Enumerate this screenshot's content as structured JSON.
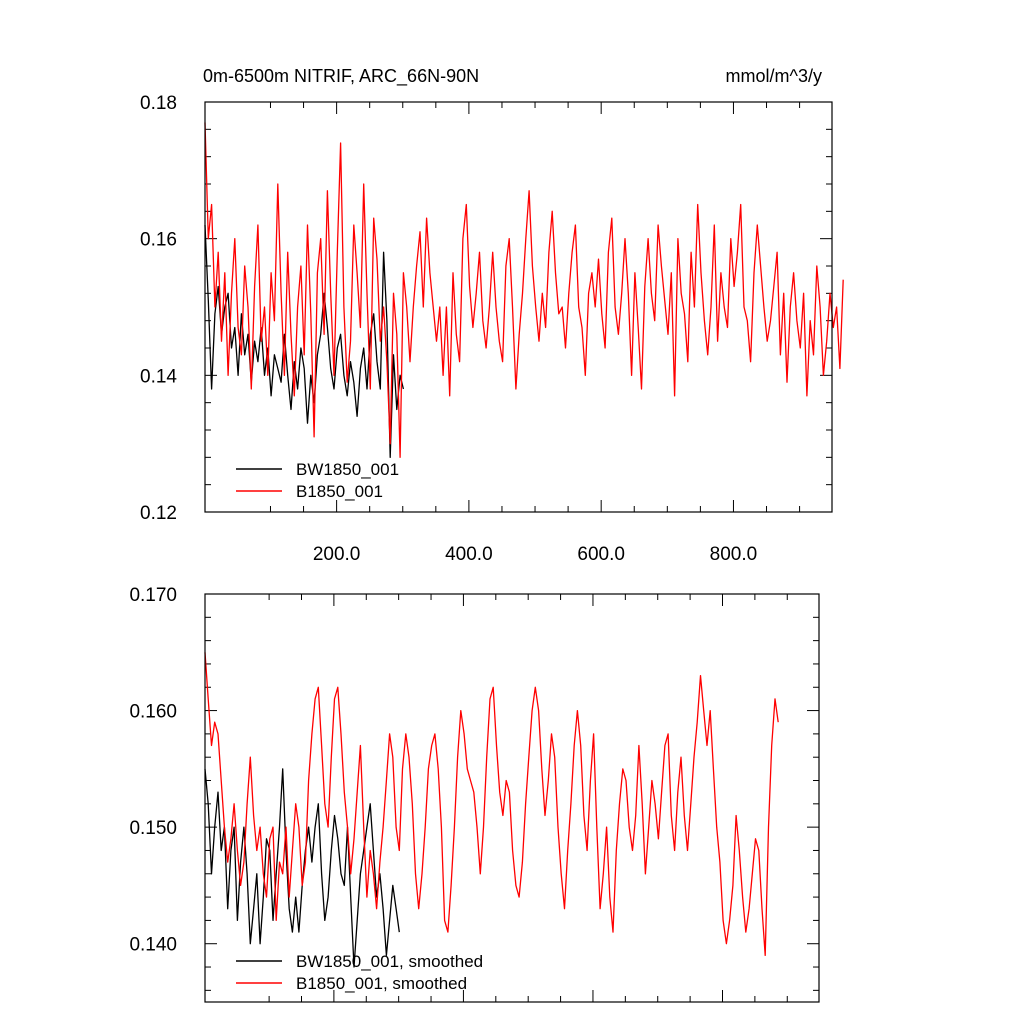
{
  "chart_data": [
    {
      "type": "line",
      "title_left": "0m-6500m NITRIF, ARC_66N-90N",
      "title_right": "mmol/m^3/y",
      "xlim": [
        1,
        949
      ],
      "ylim": [
        0.12,
        0.18
      ],
      "x_ticks": [
        200,
        400,
        600,
        800
      ],
      "x_tick_labels": [
        "200.0",
        "400.0",
        "600.0",
        "800.0"
      ],
      "y_ticks": [
        0.12,
        0.14,
        0.16,
        0.18
      ],
      "y_tick_labels": [
        "0.12",
        "0.14",
        "0.16",
        "0.18"
      ],
      "legend_position": "bottom-left",
      "series": [
        {
          "name": "BW1850_001",
          "color": "#000000",
          "x_step": 5,
          "x_start": 1,
          "values": [
            0.162,
            0.151,
            0.138,
            0.149,
            0.153,
            0.146,
            0.15,
            0.152,
            0.144,
            0.147,
            0.14,
            0.149,
            0.143,
            0.146,
            0.139,
            0.145,
            0.142,
            0.147,
            0.14,
            0.144,
            0.137,
            0.143,
            0.141,
            0.139,
            0.146,
            0.14,
            0.135,
            0.142,
            0.138,
            0.144,
            0.141,
            0.133,
            0.14,
            0.136,
            0.143,
            0.146,
            0.152,
            0.147,
            0.141,
            0.138,
            0.144,
            0.146,
            0.14,
            0.137,
            0.142,
            0.139,
            0.134,
            0.141,
            0.144,
            0.138,
            0.146,
            0.149,
            0.142,
            0.138,
            0.158,
            0.148,
            0.128,
            0.143,
            0.135,
            0.14,
            0.138
          ]
        },
        {
          "name": "B1850_001",
          "color": "#ff0000",
          "x_step": 5,
          "x_start": 1,
          "values": [
            0.177,
            0.16,
            0.165,
            0.15,
            0.158,
            0.145,
            0.155,
            0.14,
            0.152,
            0.16,
            0.147,
            0.143,
            0.156,
            0.15,
            0.138,
            0.153,
            0.162,
            0.145,
            0.15,
            0.14,
            0.155,
            0.148,
            0.168,
            0.152,
            0.14,
            0.158,
            0.146,
            0.137,
            0.15,
            0.156,
            0.143,
            0.162,
            0.149,
            0.131,
            0.155,
            0.16,
            0.146,
            0.167,
            0.152,
            0.14,
            0.158,
            0.174,
            0.15,
            0.139,
            0.145,
            0.162,
            0.155,
            0.147,
            0.168,
            0.152,
            0.138,
            0.163,
            0.157,
            0.145,
            0.15,
            0.142,
            0.13,
            0.152,
            0.146,
            0.128,
            0.155,
            0.15,
            0.142,
            0.15,
            0.156,
            0.161,
            0.15,
            0.163,
            0.155,
            0.15,
            0.145,
            0.15,
            0.14,
            0.15,
            0.137,
            0.155,
            0.146,
            0.142,
            0.16,
            0.165,
            0.153,
            0.147,
            0.152,
            0.158,
            0.148,
            0.144,
            0.15,
            0.158,
            0.15,
            0.145,
            0.142,
            0.156,
            0.16,
            0.15,
            0.138,
            0.146,
            0.152,
            0.16,
            0.167,
            0.156,
            0.15,
            0.145,
            0.152,
            0.147,
            0.158,
            0.164,
            0.155,
            0.149,
            0.15,
            0.144,
            0.152,
            0.158,
            0.162,
            0.15,
            0.147,
            0.14,
            0.152,
            0.155,
            0.15,
            0.157,
            0.149,
            0.144,
            0.158,
            0.163,
            0.15,
            0.146,
            0.152,
            0.16,
            0.152,
            0.14,
            0.155,
            0.147,
            0.138,
            0.153,
            0.16,
            0.152,
            0.148,
            0.162,
            0.156,
            0.151,
            0.146,
            0.155,
            0.137,
            0.16,
            0.152,
            0.149,
            0.142,
            0.158,
            0.15,
            0.165,
            0.155,
            0.148,
            0.143,
            0.15,
            0.162,
            0.145,
            0.155,
            0.15,
            0.147,
            0.16,
            0.153,
            0.158,
            0.165,
            0.15,
            0.148,
            0.142,
            0.155,
            0.162,
            0.156,
            0.15,
            0.145,
            0.148,
            0.153,
            0.158,
            0.143,
            0.152,
            0.139,
            0.15,
            0.155,
            0.148,
            0.144,
            0.152,
            0.137,
            0.148,
            0.143,
            0.156,
            0.15,
            0.14,
            0.145,
            0.152,
            0.147,
            0.15,
            0.141,
            0.154
          ]
        }
      ],
      "legend": [
        {
          "label": "BW1850_001",
          "color": "#000000"
        },
        {
          "label": "B1850_001",
          "color": "#ff0000"
        }
      ]
    },
    {
      "type": "line",
      "xlim": [
        1,
        949
      ],
      "ylim": [
        0.135,
        0.17
      ],
      "x_ticks": [
        200,
        400,
        600,
        800
      ],
      "x_tick_labels": [],
      "y_ticks": [
        0.14,
        0.15,
        0.16,
        0.17
      ],
      "y_tick_labels": [
        "0.140",
        "0.150",
        "0.160",
        "0.170"
      ],
      "legend_position": "bottom-left",
      "series": [
        {
          "name": "BW1850_001, smoothed",
          "color": "#000000",
          "x_step": 5,
          "x_start": 1,
          "values": [
            0.155,
            0.152,
            0.146,
            0.15,
            0.153,
            0.148,
            0.15,
            0.143,
            0.148,
            0.15,
            0.142,
            0.147,
            0.15,
            0.146,
            0.14,
            0.143,
            0.146,
            0.14,
            0.144,
            0.149,
            0.148,
            0.142,
            0.146,
            0.15,
            0.155,
            0.148,
            0.143,
            0.141,
            0.144,
            0.141,
            0.145,
            0.148,
            0.15,
            0.147,
            0.15,
            0.152,
            0.146,
            0.142,
            0.144,
            0.148,
            0.151,
            0.149,
            0.146,
            0.145,
            0.15,
            0.144,
            0.138,
            0.142,
            0.146,
            0.148,
            0.15,
            0.152,
            0.148,
            0.144,
            0.146,
            0.143,
            0.139,
            0.142,
            0.145,
            0.143,
            0.141
          ]
        },
        {
          "name": "B1850_001, smoothed",
          "color": "#ff0000",
          "x_step": 5,
          "x_start": 1,
          "values": [
            0.165,
            0.161,
            0.157,
            0.159,
            0.158,
            0.154,
            0.15,
            0.147,
            0.149,
            0.152,
            0.148,
            0.145,
            0.147,
            0.152,
            0.156,
            0.151,
            0.148,
            0.15,
            0.146,
            0.144,
            0.149,
            0.15,
            0.142,
            0.147,
            0.146,
            0.15,
            0.144,
            0.148,
            0.152,
            0.15,
            0.145,
            0.147,
            0.154,
            0.158,
            0.161,
            0.162,
            0.157,
            0.152,
            0.15,
            0.156,
            0.161,
            0.162,
            0.158,
            0.153,
            0.15,
            0.146,
            0.149,
            0.153,
            0.157,
            0.15,
            0.144,
            0.148,
            0.146,
            0.143,
            0.147,
            0.15,
            0.154,
            0.158,
            0.156,
            0.15,
            0.148,
            0.155,
            0.158,
            0.156,
            0.152,
            0.146,
            0.143,
            0.146,
            0.15,
            0.155,
            0.157,
            0.158,
            0.155,
            0.15,
            0.142,
            0.141,
            0.145,
            0.15,
            0.156,
            0.16,
            0.158,
            0.155,
            0.154,
            0.153,
            0.15,
            0.146,
            0.15,
            0.156,
            0.161,
            0.162,
            0.157,
            0.153,
            0.151,
            0.154,
            0.153,
            0.148,
            0.145,
            0.144,
            0.147,
            0.152,
            0.156,
            0.16,
            0.162,
            0.16,
            0.155,
            0.151,
            0.154,
            0.158,
            0.156,
            0.15,
            0.146,
            0.143,
            0.148,
            0.152,
            0.157,
            0.16,
            0.157,
            0.151,
            0.148,
            0.154,
            0.158,
            0.15,
            0.143,
            0.146,
            0.15,
            0.144,
            0.141,
            0.148,
            0.152,
            0.155,
            0.154,
            0.15,
            0.148,
            0.151,
            0.157,
            0.152,
            0.146,
            0.15,
            0.154,
            0.152,
            0.149,
            0.153,
            0.157,
            0.158,
            0.151,
            0.148,
            0.153,
            0.156,
            0.151,
            0.148,
            0.152,
            0.156,
            0.159,
            0.163,
            0.16,
            0.157,
            0.16,
            0.155,
            0.15,
            0.147,
            0.142,
            0.14,
            0.142,
            0.145,
            0.151,
            0.148,
            0.144,
            0.141,
            0.143,
            0.146,
            0.149,
            0.148,
            0.143,
            0.139,
            0.15,
            0.157,
            0.161,
            0.159
          ]
        }
      ],
      "legend": [
        {
          "label": "BW1850_001, smoothed",
          "color": "#000000"
        },
        {
          "label": "B1850_001, smoothed",
          "color": "#ff0000"
        }
      ]
    }
  ]
}
